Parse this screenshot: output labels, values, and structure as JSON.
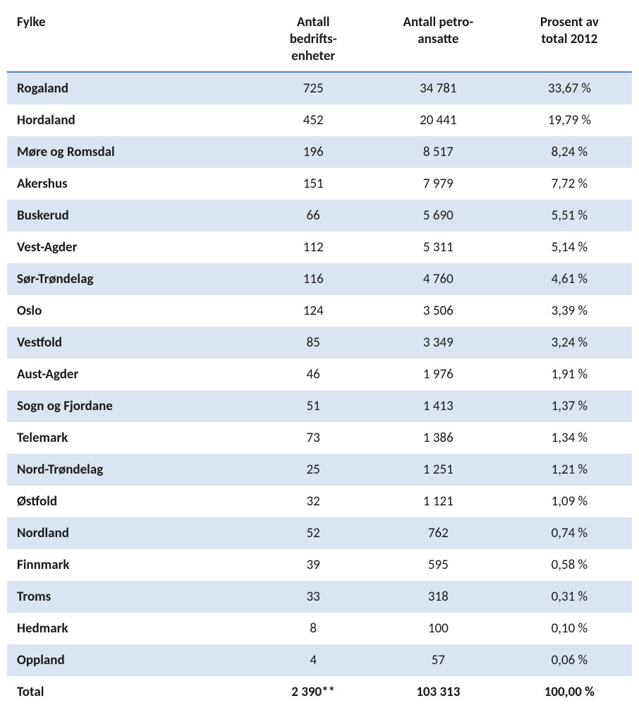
{
  "table": {
    "type": "table",
    "stripe_color": "#dbe5f1",
    "rule_color": "#4f81bd",
    "background_color": "#ffffff",
    "text_color": "#1a1a1a",
    "header_fontsize": 19,
    "body_fontsize": 19,
    "font_family": "Calibri",
    "columns": [
      {
        "key": "fylke",
        "label": "Fylke",
        "align": "left",
        "width_pct": 40,
        "bold": true
      },
      {
        "key": "bedrift",
        "label": "Antall bedrifts-enheter",
        "align": "center",
        "width_pct": 18
      },
      {
        "key": "petro",
        "label": "Antall petro-ansatte",
        "align": "center",
        "width_pct": 22
      },
      {
        "key": "prosent",
        "label": "Prosent av total 2012",
        "align": "center",
        "width_pct": 20
      }
    ],
    "header_lines": {
      "fylke": [
        "Fylke"
      ],
      "bedrift": [
        "Antall",
        "bedrifts-",
        "enheter"
      ],
      "petro": [
        "Antall petro-",
        "ansatte"
      ],
      "prosent": [
        "Prosent av",
        "total 2012"
      ]
    },
    "rows": [
      {
        "fylke": "Rogaland",
        "bedrift": "725",
        "petro": "34 781",
        "prosent": "33,67 %"
      },
      {
        "fylke": "Hordaland",
        "bedrift": "452",
        "petro": "20 441",
        "prosent": "19,79 %"
      },
      {
        "fylke": "Møre og Romsdal",
        "bedrift": "196",
        "petro": "8 517",
        "prosent": "8,24 %"
      },
      {
        "fylke": "Akershus",
        "bedrift": "151",
        "petro": "7 979",
        "prosent": "7,72 %"
      },
      {
        "fylke": "Buskerud",
        "bedrift": "66",
        "petro": "5 690",
        "prosent": "5,51 %"
      },
      {
        "fylke": "Vest-Agder",
        "bedrift": "112",
        "petro": "5 311",
        "prosent": "5,14 %"
      },
      {
        "fylke": "Sør-Trøndelag",
        "bedrift": "116",
        "petro": "4 760",
        "prosent": "4,61 %"
      },
      {
        "fylke": "Oslo",
        "bedrift": "124",
        "petro": "3 506",
        "prosent": "3,39 %"
      },
      {
        "fylke": "Vestfold",
        "bedrift": "85",
        "petro": "3 349",
        "prosent": "3,24 %"
      },
      {
        "fylke": "Aust-Agder",
        "bedrift": "46",
        "petro": "1 976",
        "prosent": "1,91 %"
      },
      {
        "fylke": "Sogn og Fjordane",
        "bedrift": "51",
        "petro": "1 413",
        "prosent": "1,37 %"
      },
      {
        "fylke": "Telemark",
        "bedrift": "73",
        "petro": "1 386",
        "prosent": "1,34 %"
      },
      {
        "fylke": "Nord-Trøndelag",
        "bedrift": "25",
        "petro": "1 251",
        "prosent": "1,21 %"
      },
      {
        "fylke": "Østfold",
        "bedrift": "32",
        "petro": "1 121",
        "prosent": "1,09 %"
      },
      {
        "fylke": "Nordland",
        "bedrift": "52",
        "petro": "762",
        "prosent": "0,74 %"
      },
      {
        "fylke": "Finnmark",
        "bedrift": "39",
        "petro": "595",
        "prosent": "0,58 %"
      },
      {
        "fylke": "Troms",
        "bedrift": "33",
        "petro": "318",
        "prosent": "0,31 %"
      },
      {
        "fylke": "Hedmark",
        "bedrift": "8",
        "petro": "100",
        "prosent": "0,10 %"
      },
      {
        "fylke": "Oppland",
        "bedrift": "4",
        "petro": "57",
        "prosent": "0,06 %"
      }
    ],
    "total": {
      "fylke": "Total",
      "bedrift": "2 390**",
      "petro": "103 313",
      "prosent": "100,00 %"
    }
  }
}
